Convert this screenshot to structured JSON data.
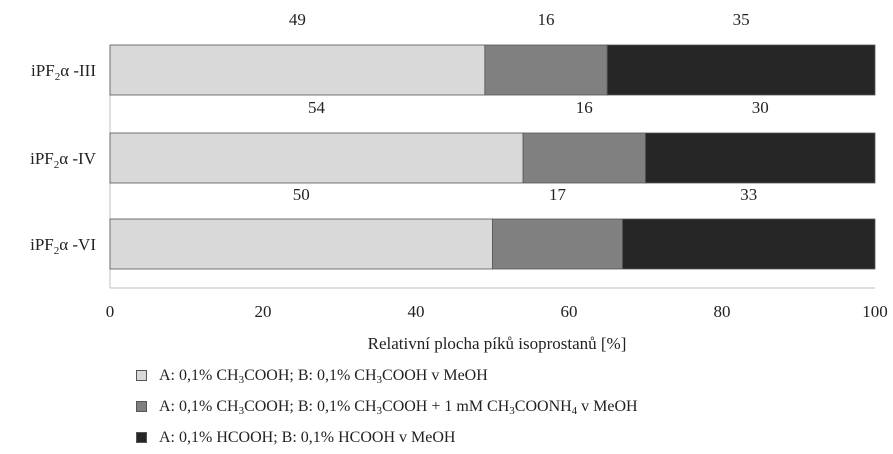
{
  "chart_data": {
    "type": "bar",
    "orientation": "horizontal",
    "stacked": true,
    "categories": [
      "iPF2α -III",
      "iPF2α -IV",
      "iPF2α -VI"
    ],
    "category_labels": [
      {
        "pre": "iPF",
        "sub": "2",
        "post": "α -III"
      },
      {
        "pre": "iPF",
        "sub": "2",
        "post": "α -IV"
      },
      {
        "pre": "iPF",
        "sub": "2",
        "post": "α -VI"
      }
    ],
    "series": [
      {
        "name": "A: 0,1% CH3COOH; B: 0,1% CH3COOH v MeOH",
        "values": [
          49,
          54,
          50
        ],
        "color": "#d9d9d9"
      },
      {
        "name": "A: 0,1% CH3COOH; B: 0,1% CH3COOH + 1 mM CH3COONH4 v MeOH",
        "values": [
          16,
          16,
          17
        ],
        "color": "#808080"
      },
      {
        "name": "A: 0,1% HCOOH; B: 0,1% HCOOH v MeOH",
        "values": [
          35,
          30,
          33
        ],
        "color": "#262626"
      }
    ],
    "xlabel": "Relativní plocha píků isoprostanů [%]",
    "xlim": [
      0,
      100
    ],
    "xticks": [
      0,
      20,
      40,
      60,
      80,
      100
    ],
    "grid": false,
    "legend_position": "bottom"
  },
  "legend": {
    "items": [
      {
        "parts": [
          "A: 0,1% CH",
          "3",
          "COOH; B: 0,1% CH",
          "3",
          "COOH v MeOH"
        ]
      },
      {
        "parts": [
          "A: 0,1% CH",
          "3",
          "COOH; B: 0,1% CH",
          "3",
          "COOH + 1 mM CH",
          "3",
          "COONH",
          "4",
          " v MeOH"
        ]
      },
      {
        "parts": [
          "A: 0,1% HCOOH; B: 0,1% HCOOH v MeOH"
        ]
      }
    ]
  }
}
